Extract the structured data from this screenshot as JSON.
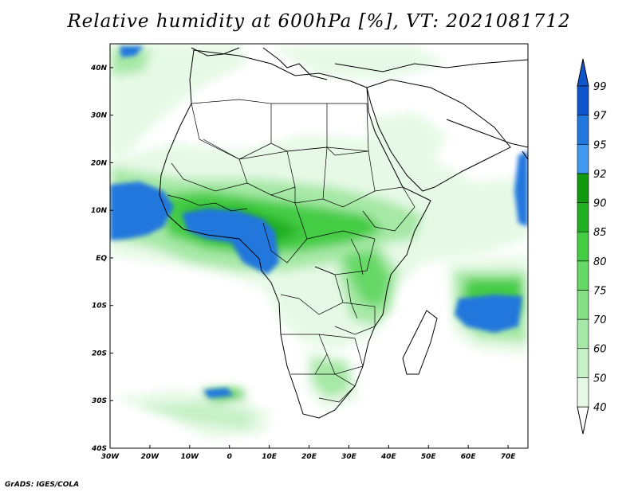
{
  "title": "Relative humidity at 600hPa [%], VT: 2021081712",
  "credit": "GrADS: IGES/COLA",
  "map": {
    "lon_range": [
      -30,
      75
    ],
    "lat_range": [
      -40,
      45
    ],
    "lon_ticks": [
      {
        "v": -30,
        "label": "30W"
      },
      {
        "v": -20,
        "label": "20W"
      },
      {
        "v": -10,
        "label": "10W"
      },
      {
        "v": 0,
        "label": "0"
      },
      {
        "v": 10,
        "label": "10E"
      },
      {
        "v": 20,
        "label": "20E"
      },
      {
        "v": 30,
        "label": "30E"
      },
      {
        "v": 40,
        "label": "40E"
      },
      {
        "v": 50,
        "label": "50E"
      },
      {
        "v": 60,
        "label": "60E"
      },
      {
        "v": 70,
        "label": "70E"
      }
    ],
    "lat_ticks": [
      {
        "v": 40,
        "label": "40N"
      },
      {
        "v": 30,
        "label": "30N"
      },
      {
        "v": 20,
        "label": "20N"
      },
      {
        "v": 10,
        "label": "10N"
      },
      {
        "v": 0,
        "label": "EQ"
      },
      {
        "v": -10,
        "label": "10S"
      },
      {
        "v": -20,
        "label": "20S"
      },
      {
        "v": -30,
        "label": "30S"
      },
      {
        "v": -40,
        "label": "40S"
      }
    ]
  },
  "colorbar": {
    "levels": [
      {
        "label": "40",
        "color": "#ffffff"
      },
      {
        "label": "50",
        "color": "#e6f9e6"
      },
      {
        "label": "60",
        "color": "#c6f0c6"
      },
      {
        "label": "70",
        "color": "#a6e8a6"
      },
      {
        "label": "75",
        "color": "#86e086"
      },
      {
        "label": "80",
        "color": "#66d866"
      },
      {
        "label": "85",
        "color": "#44cc44"
      },
      {
        "label": "90",
        "color": "#22b022"
      },
      {
        "label": "92",
        "color": "#119a11"
      },
      {
        "label": "95",
        "color": "#4499ee"
      },
      {
        "label": "97",
        "color": "#2277dd"
      },
      {
        "label": "99",
        "color": "#1155cc"
      }
    ],
    "low_color": "#ffffff",
    "high_color": "#1155cc"
  }
}
